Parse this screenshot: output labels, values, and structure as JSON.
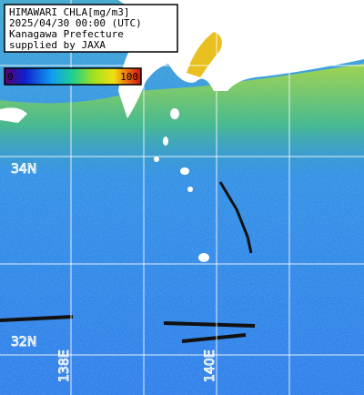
{
  "header": {
    "lines": [
      "HIMAWARI CHLA[mg/m3]",
      "2025/04/30 00:00 (UTC)",
      "Kanagawa Prefecture",
      "supplied by JAXA"
    ]
  },
  "colorbar": {
    "min": 0,
    "max": 100
  },
  "grid_labels": {
    "lat": [
      "34N",
      "32N"
    ],
    "lon": [
      "138E",
      "140E"
    ]
  }
}
